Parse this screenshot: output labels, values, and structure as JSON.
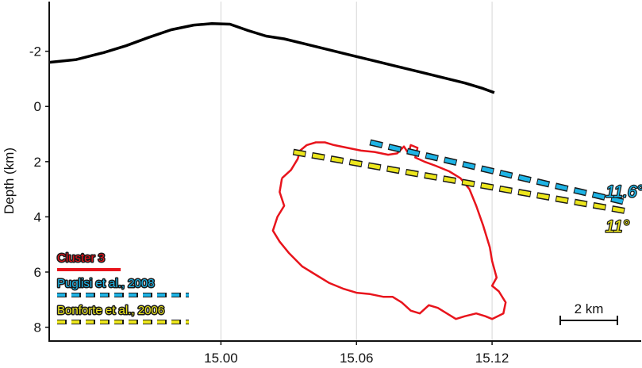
{
  "chart_data": {
    "type": "line",
    "title": "",
    "xlabel": "",
    "ylabel": "Depth (km)",
    "xlim": [
      14.924,
      15.186
    ],
    "ylim": [
      8.5,
      -3.8
    ],
    "y_inverted": true,
    "x_ticks": [
      15.0,
      15.06,
      15.12
    ],
    "x_tick_labels": [
      "15.00",
      "15.06",
      "15.12"
    ],
    "y_ticks": [
      -2,
      0,
      2,
      4,
      6,
      8
    ],
    "y_tick_labels": [
      "-2",
      "0",
      "2",
      "4",
      "6",
      "8"
    ],
    "grid": true,
    "legend_position": "bottom-left",
    "topography": {
      "color": "#000000",
      "x": [
        14.924,
        14.936,
        14.948,
        14.958,
        14.968,
        14.978,
        14.988,
        14.996,
        15.004,
        15.012,
        15.02,
        15.028,
        15.038,
        15.048,
        15.058,
        15.068,
        15.078,
        15.088,
        15.098,
        15.108,
        15.116,
        15.121
      ],
      "y": [
        -1.6,
        -1.7,
        -1.95,
        -2.2,
        -2.5,
        -2.78,
        -2.95,
        -3.0,
        -2.98,
        -2.75,
        -2.55,
        -2.45,
        -2.25,
        -2.05,
        -1.85,
        -1.65,
        -1.45,
        -1.25,
        -1.05,
        -0.85,
        -0.65,
        -0.5
      ]
    },
    "series": [
      {
        "name": "Cluster 3",
        "style": "solid",
        "color": "#e8141c",
        "x": [
          15.027,
          15.031,
          15.034,
          15.035,
          15.038,
          15.042,
          15.046,
          15.05,
          15.056,
          15.062,
          15.068,
          15.074,
          15.078,
          15.081,
          15.083,
          15.084,
          15.087,
          15.086,
          15.09,
          15.095,
          15.101,
          15.106,
          15.11,
          15.113,
          15.116,
          15.119,
          15.12,
          15.122,
          15.12,
          15.123,
          15.126,
          15.125,
          15.12,
          15.117,
          15.113,
          15.108,
          15.104,
          15.1,
          15.096,
          15.092,
          15.088,
          15.084,
          15.08,
          15.076,
          15.072,
          15.066,
          15.06,
          15.054,
          15.048,
          15.042,
          15.036,
          15.03,
          15.026,
          15.023,
          15.025,
          15.028,
          15.026,
          15.027
        ],
        "y": [
          2.6,
          2.3,
          1.9,
          1.6,
          1.4,
          1.3,
          1.3,
          1.4,
          1.5,
          1.6,
          1.65,
          1.75,
          1.7,
          1.45,
          1.7,
          1.4,
          1.5,
          1.85,
          2.0,
          2.15,
          2.35,
          2.6,
          3.0,
          3.6,
          4.3,
          5.1,
          5.6,
          6.2,
          6.5,
          6.7,
          7.1,
          7.5,
          7.7,
          7.6,
          7.5,
          7.6,
          7.7,
          7.5,
          7.3,
          7.2,
          7.5,
          7.4,
          7.1,
          6.9,
          6.9,
          6.8,
          6.75,
          6.6,
          6.4,
          6.1,
          5.8,
          5.3,
          4.9,
          4.5,
          4.0,
          3.6,
          3.1,
          2.6
        ]
      },
      {
        "name": "Puglisi et al., 2008",
        "style": "dashed",
        "color": "#1eb4e6",
        "x": [
          15.066,
          15.178
        ],
        "y": [
          1.3,
          3.45
        ],
        "dip_label": "11.6°"
      },
      {
        "name": "Bonforte et al., 2006",
        "style": "dashed",
        "color": "#ece61c",
        "x": [
          15.032,
          15.18
        ],
        "y": [
          1.65,
          3.8
        ],
        "dip_label": "11°"
      }
    ],
    "annotations": [
      "11.6°",
      "11°"
    ],
    "scale_bar": {
      "label": "2 km",
      "length_km": 2
    }
  }
}
